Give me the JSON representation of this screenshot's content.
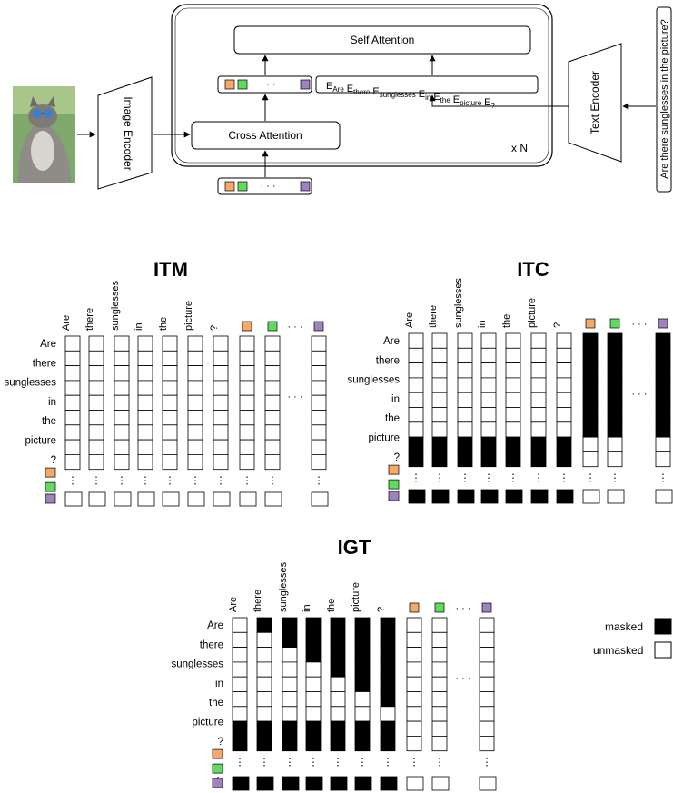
{
  "architecture": {
    "image_encoder": "Image Encoder",
    "text_encoder": "Text Encoder",
    "cross_attention": "Cross Attention",
    "self_attention": "Self Attention",
    "repeat": "x N",
    "question": "Are there sunglesses in the picture?",
    "embedding_sequence": [
      {
        "base": "E",
        "sub": "Are"
      },
      {
        "base": "E",
        "sub": "there"
      },
      {
        "base": "E",
        "sub": "sunglesses"
      },
      {
        "base": "E",
        "sub": "in"
      },
      {
        "base": "E",
        "sub": "the"
      },
      {
        "base": "E",
        "sub": "picture"
      },
      {
        "base": "E",
        "sub": "?"
      }
    ],
    "image_description": "kitten wearing blue sunglasses"
  },
  "tokens": [
    "Are",
    "there",
    "sunglesses",
    "in",
    "the",
    "picture",
    "?"
  ],
  "query_token_colors": [
    "#f5a868",
    "#5fdc5f",
    "#9f82bf"
  ],
  "ellipsis": "· · ·",
  "itm": {
    "title": "ITM"
  },
  "itc": {
    "title": "ITC"
  },
  "igt": {
    "title": "IGT"
  },
  "legend": {
    "masked": "masked",
    "unmasked": "unmasked",
    "masked_color": "#000000",
    "unmasked_color": "#ffffff"
  }
}
